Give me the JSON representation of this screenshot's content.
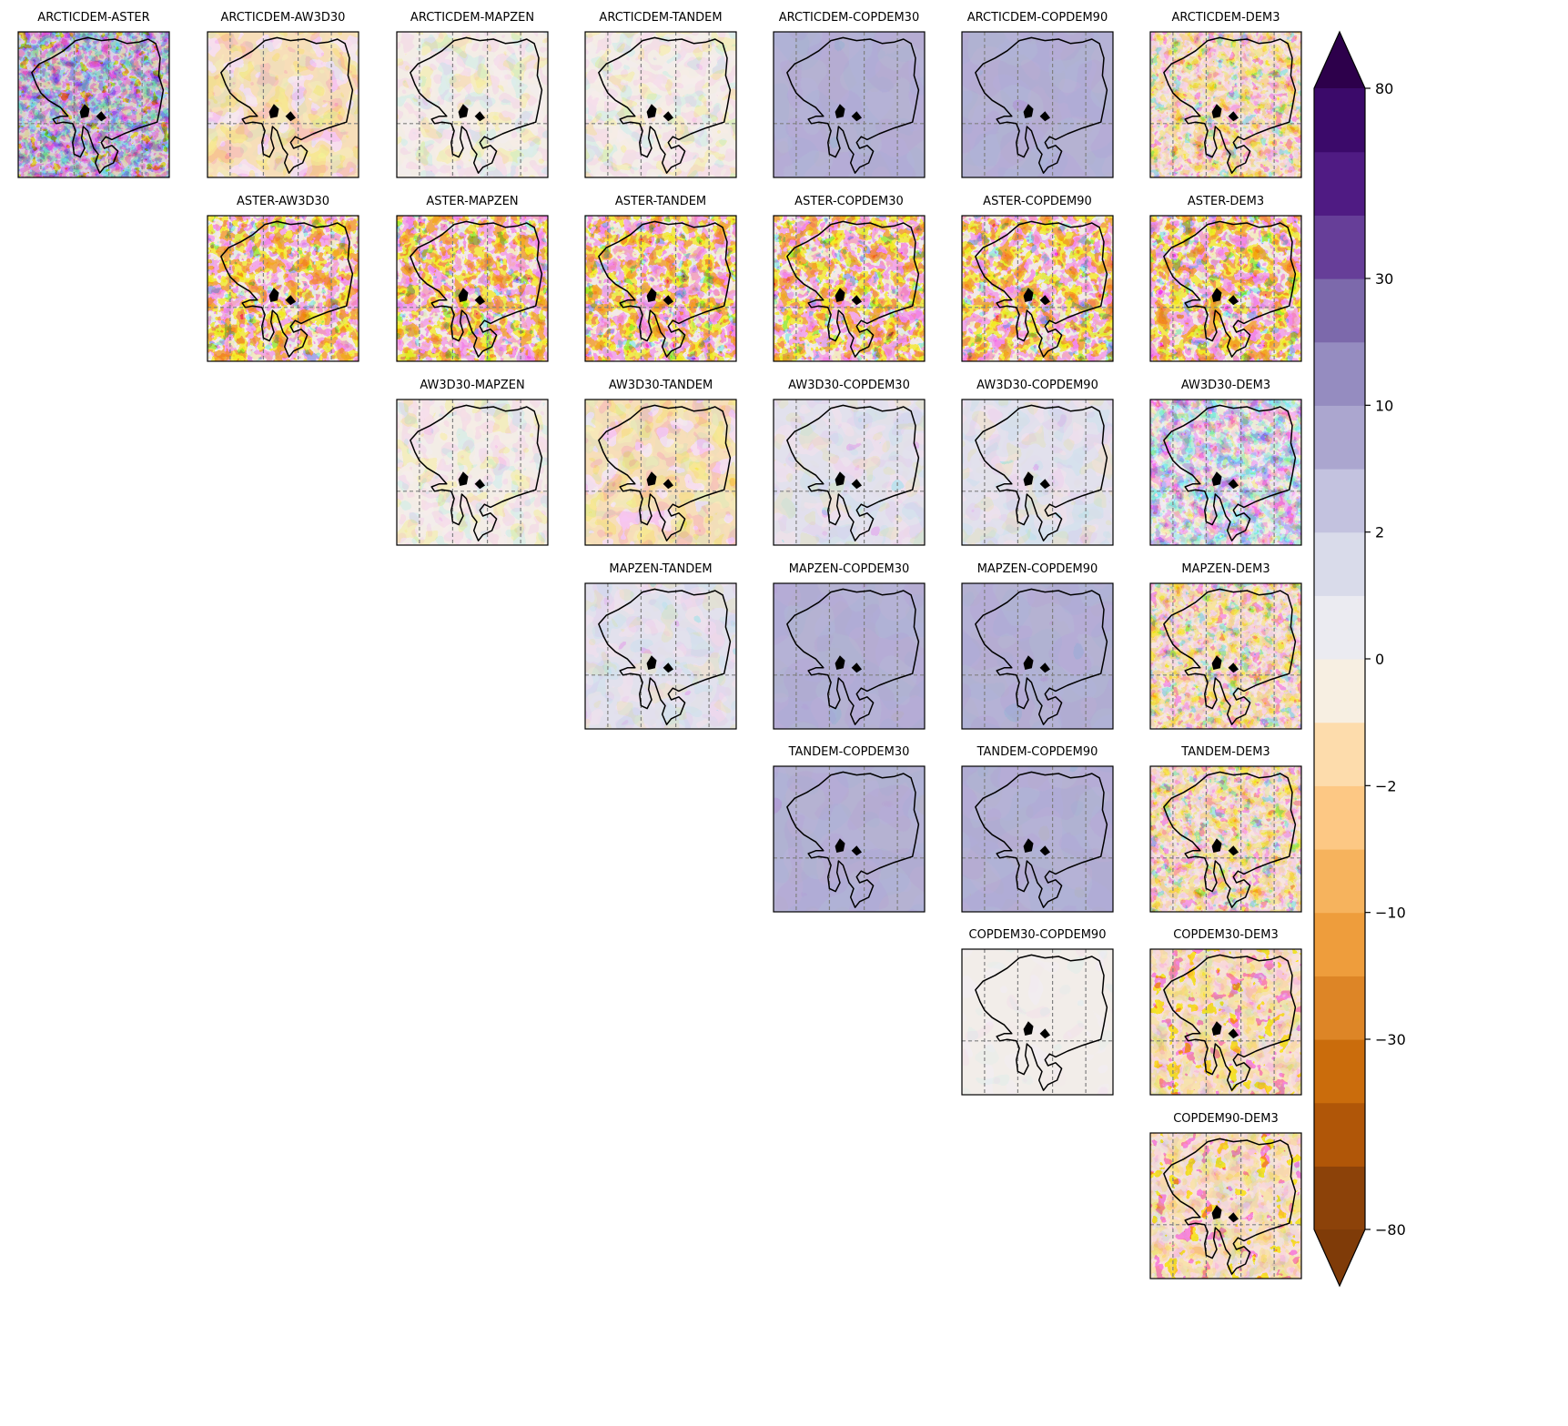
{
  "chart_data": {
    "type": "heatmap",
    "layout": "upper-triangle grid of pairwise DEM difference maps",
    "panel_titles": [
      [
        "ARCTICDEM-ASTER",
        "ARCTICDEM-AW3D30",
        "ARCTICDEM-MAPZEN",
        "ARCTICDEM-TANDEM",
        "ARCTICDEM-COPDEM30",
        "ARCTICDEM-COPDEM90",
        "ARCTICDEM-DEM3"
      ],
      [
        "ASTER-AW3D30",
        "ASTER-MAPZEN",
        "ASTER-TANDEM",
        "ASTER-COPDEM30",
        "ASTER-COPDEM90",
        "ASTER-DEM3"
      ],
      [
        "AW3D30-MAPZEN",
        "AW3D30-TANDEM",
        "AW3D30-COPDEM30",
        "AW3D30-COPDEM90",
        "AW3D30-DEM3"
      ],
      [
        "MAPZEN-TANDEM",
        "MAPZEN-COPDEM30",
        "MAPZEN-COPDEM90",
        "MAPZEN-DEM3"
      ],
      [
        "TANDEM-COPDEM30",
        "TANDEM-COPDEM90",
        "TANDEM-DEM3"
      ],
      [
        "COPDEM30-COPDEM90",
        "COPDEM30-DEM3"
      ],
      [
        "COPDEM90-DEM3"
      ]
    ],
    "panel_patterns": [
      [
        "noisy-purple",
        "light-orange",
        "light-mixed",
        "light-mixed",
        "uniform-purple",
        "uniform-purple",
        "textured-orange"
      ],
      [
        "strong-orange",
        "strong-orange",
        "strong-orange",
        "strong-orange",
        "strong-orange",
        "strong-orange"
      ],
      [
        "light-mixed",
        "light-orange",
        "light-purple",
        "light-purple",
        "textured-mixed"
      ],
      [
        "light-purple",
        "uniform-purple",
        "uniform-purple",
        "textured-orange"
      ],
      [
        "uniform-purple",
        "uniform-purple",
        "textured-orange"
      ],
      [
        "near-zero",
        "warm-orange"
      ],
      [
        "warm-orange"
      ]
    ],
    "colorbar": {
      "boundaries": [
        -80,
        -60,
        -40,
        -30,
        -20,
        -10,
        -5,
        -2,
        -1,
        0,
        1,
        2,
        5,
        10,
        20,
        30,
        40,
        60,
        80
      ],
      "tick_labels": [
        "80",
        "30",
        "10",
        "2",
        "0",
        "−2",
        "−10",
        "−30",
        "−80"
      ],
      "tick_values": [
        80,
        30,
        10,
        2,
        0,
        -2,
        -10,
        -30,
        -80
      ],
      "extend": "both",
      "colors_low_to_high": [
        "#8c4209",
        "#b05608",
        "#ca6c0c",
        "#dd8526",
        "#ee9d3c",
        "#f6b35d",
        "#fdc884",
        "#fddcac",
        "#f7efe2",
        "#ebebf1",
        "#d9dbea",
        "#c3c2df",
        "#aba6cf",
        "#958cc0",
        "#7c69ab",
        "#663e98",
        "#4f1b83",
        "#3b0a6a"
      ],
      "under_color": "#7f3b08",
      "over_color": "#2d004b"
    },
    "gridlines": "dashed grey, 4 vertical and 1 horizontal per panel"
  }
}
